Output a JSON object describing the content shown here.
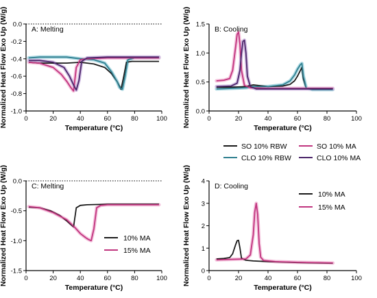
{
  "colors": {
    "black": "#1a1a1a",
    "magenta": "#c0347e",
    "teal": "#2f7f8f",
    "purple": "#4a2468",
    "magenta_band": "#f2b7d6",
    "teal_band": "#9fd2de",
    "purple_band": "#c9b3dd"
  },
  "chart_data": [
    {
      "type": "line",
      "panel_label": "A: Melting",
      "xlabel": "Temperature (°C)",
      "ylabel": "Normalized Heat Flow Exo Up (W/g)",
      "xlim": [
        0,
        100
      ],
      "ylim": [
        -1.0,
        0.0
      ],
      "xticks": [
        "0",
        "20",
        "40",
        "60",
        "80",
        "100"
      ],
      "yticks": [
        "-1.0",
        "-0.8",
        "-0.6",
        "-0.4",
        "-0.2",
        "0.0"
      ],
      "zero_line": true,
      "series": [
        {
          "name": "SO 10% RBW",
          "color_key": "black",
          "band_key": "",
          "x": [
            2,
            10,
            20,
            30,
            40,
            50,
            58,
            63,
            67,
            69,
            70,
            72,
            74,
            78,
            85,
            98
          ],
          "y": [
            -0.44,
            -0.45,
            -0.45,
            -0.45,
            -0.44,
            -0.46,
            -0.5,
            -0.57,
            -0.66,
            -0.72,
            -0.75,
            -0.6,
            -0.44,
            -0.43,
            -0.43,
            -0.43
          ]
        },
        {
          "name": "CLO 10% RBW",
          "color_key": "teal",
          "band_key": "teal_band",
          "x": [
            2,
            10,
            20,
            30,
            40,
            50,
            58,
            63,
            67,
            69,
            71,
            73,
            75,
            80,
            90,
            98
          ],
          "y": [
            -0.39,
            -0.38,
            -0.38,
            -0.38,
            -0.4,
            -0.41,
            -0.45,
            -0.55,
            -0.66,
            -0.73,
            -0.75,
            -0.6,
            -0.41,
            -0.39,
            -0.39,
            -0.39
          ]
        },
        {
          "name": "SO 10% MA",
          "color_key": "magenta",
          "band_key": "magenta_band",
          "x": [
            2,
            10,
            20,
            26,
            30,
            33,
            35,
            37,
            40,
            45,
            60,
            80,
            98
          ],
          "y": [
            -0.44,
            -0.45,
            -0.5,
            -0.58,
            -0.66,
            -0.73,
            -0.77,
            -0.5,
            -0.41,
            -0.4,
            -0.39,
            -0.39,
            -0.39
          ]
        },
        {
          "name": "CLO 10% MA",
          "color_key": "purple",
          "band_key": "purple_band",
          "x": [
            2,
            10,
            20,
            28,
            32,
            35,
            37,
            39,
            41,
            45,
            60,
            80,
            98
          ],
          "y": [
            -0.42,
            -0.42,
            -0.44,
            -0.5,
            -0.6,
            -0.7,
            -0.76,
            -0.65,
            -0.43,
            -0.39,
            -0.38,
            -0.38,
            -0.38
          ]
        }
      ]
    },
    {
      "type": "line",
      "panel_label": "B: Cooling",
      "xlabel": "Temperature (°C)",
      "ylabel": "Normalized Heat Flow Exo Up (W/g)",
      "xlim": [
        0,
        100
      ],
      "ylim": [
        0,
        1.5
      ],
      "xticks": [
        "0",
        "20",
        "40",
        "60",
        "80",
        "100"
      ],
      "yticks": [
        "0.0",
        "0.5",
        "1.0",
        "1.5"
      ],
      "legend": {
        "placement": "below",
        "entries": [
          {
            "label": "SO 10% RBW",
            "color_key": "black"
          },
          {
            "label": "CLO 10% RBW",
            "color_key": "teal"
          },
          {
            "label": "SO 10% MA",
            "color_key": "magenta"
          },
          {
            "label": "CLO 10% MA",
            "color_key": "purple"
          }
        ]
      },
      "series": [
        {
          "name": "SO 10% RBW",
          "color_key": "black",
          "band_key": "",
          "x": [
            5,
            15,
            25,
            30,
            40,
            50,
            55,
            58,
            60,
            62,
            63,
            64,
            66,
            70,
            84
          ],
          "y": [
            0.41,
            0.41,
            0.42,
            0.45,
            0.42,
            0.43,
            0.46,
            0.52,
            0.6,
            0.7,
            0.75,
            0.55,
            0.39,
            0.39,
            0.39
          ]
        },
        {
          "name": "CLO 10% RBW",
          "color_key": "teal",
          "band_key": "teal_band",
          "x": [
            5,
            15,
            25,
            30,
            40,
            50,
            55,
            58,
            60,
            62,
            63,
            64,
            66,
            70,
            84
          ],
          "y": [
            0.38,
            0.39,
            0.4,
            0.42,
            0.42,
            0.45,
            0.52,
            0.62,
            0.72,
            0.8,
            0.82,
            0.6,
            0.39,
            0.37,
            0.37
          ]
        },
        {
          "name": "SO 10% MA",
          "color_key": "magenta",
          "band_key": "magenta_band",
          "x": [
            5,
            10,
            14,
            16,
            18,
            19,
            20,
            21,
            22,
            24,
            28,
            40,
            84
          ],
          "y": [
            0.52,
            0.53,
            0.56,
            0.7,
            1.1,
            1.32,
            1.36,
            1.15,
            0.7,
            0.44,
            0.4,
            0.39,
            0.39
          ]
        },
        {
          "name": "CLO 10% MA",
          "color_key": "purple",
          "band_key": "purple_band",
          "x": [
            5,
            15,
            19,
            21,
            22,
            23,
            24,
            25,
            26,
            28,
            32,
            45,
            84
          ],
          "y": [
            0.42,
            0.43,
            0.48,
            0.7,
            1.0,
            1.2,
            1.22,
            1.0,
            0.6,
            0.42,
            0.38,
            0.38,
            0.38
          ]
        }
      ]
    },
    {
      "type": "line",
      "panel_label": "C: Melting",
      "xlabel": "Temperature (°C)",
      "ylabel": "Normalized Heat Flow Exo Up (W/g)",
      "xlim": [
        0,
        100
      ],
      "ylim": [
        -1.5,
        0.0
      ],
      "xticks": [
        "0",
        "20",
        "40",
        "60",
        "80",
        "100"
      ],
      "yticks": [
        "-1.5",
        "-1.0",
        "-0.5",
        "0.0"
      ],
      "zero_line": true,
      "legend": {
        "placement": "bottom-right",
        "entries": [
          {
            "label": "10% MA",
            "color_key": "black"
          },
          {
            "label": "15% MA",
            "color_key": "magenta"
          }
        ]
      },
      "series": [
        {
          "name": "10% MA",
          "color_key": "black",
          "band_key": "",
          "x": [
            2,
            10,
            18,
            25,
            30,
            33,
            35,
            37,
            40,
            45,
            60,
            80,
            98
          ],
          "y": [
            -0.44,
            -0.45,
            -0.5,
            -0.58,
            -0.67,
            -0.73,
            -0.77,
            -0.45,
            -0.41,
            -0.4,
            -0.39,
            -0.39,
            -0.39
          ]
        },
        {
          "name": "15% MA",
          "color_key": "magenta",
          "band_key": "magenta_band",
          "x": [
            2,
            10,
            20,
            30,
            36,
            40,
            44,
            46,
            48,
            50,
            52,
            55,
            60,
            80,
            98
          ],
          "y": [
            -0.43,
            -0.45,
            -0.53,
            -0.65,
            -0.78,
            -0.88,
            -0.95,
            -0.98,
            -1.0,
            -0.8,
            -0.45,
            -0.41,
            -0.4,
            -0.4,
            -0.4
          ]
        }
      ]
    },
    {
      "type": "line",
      "panel_label": "D: Cooling",
      "xlabel": "Temperature (°C)",
      "ylabel": "Normalized Heat Flow Exo Up (W/g)",
      "xlim": [
        0,
        100
      ],
      "ylim": [
        0,
        4
      ],
      "xticks": [
        "0",
        "20",
        "40",
        "60",
        "80",
        "100"
      ],
      "yticks": [
        "0",
        "1",
        "2",
        "3",
        "4"
      ],
      "legend": {
        "placement": "top-right",
        "entries": [
          {
            "label": "10% MA",
            "color_key": "black"
          },
          {
            "label": "15% MA",
            "color_key": "magenta"
          }
        ]
      },
      "series": [
        {
          "name": "10% MA",
          "color_key": "black",
          "band_key": "",
          "x": [
            5,
            10,
            14,
            16,
            18,
            19,
            20,
            21,
            22,
            25,
            30,
            40,
            60,
            84
          ],
          "y": [
            0.52,
            0.54,
            0.58,
            0.75,
            1.15,
            1.33,
            1.35,
            1.0,
            0.55,
            0.46,
            0.43,
            0.4,
            0.36,
            0.33
          ]
        },
        {
          "name": "15% MA",
          "color_key": "magenta",
          "band_key": "magenta_band",
          "x": [
            5,
            15,
            25,
            28,
            30,
            31,
            32,
            33,
            34,
            35,
            37,
            45,
            60,
            84
          ],
          "y": [
            0.48,
            0.5,
            0.52,
            0.7,
            1.6,
            2.6,
            3.0,
            2.5,
            1.2,
            0.6,
            0.45,
            0.4,
            0.37,
            0.34
          ]
        }
      ]
    }
  ]
}
